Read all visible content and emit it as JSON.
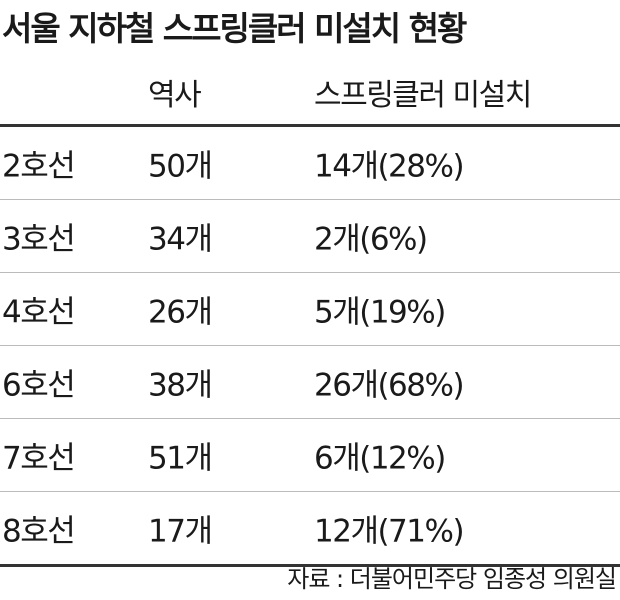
{
  "title": "서울 지하철 스프링클러 미설치 현황",
  "table": {
    "header": [
      "",
      "역사",
      "스프링클러 미설치"
    ],
    "rows": [
      [
        "2호선",
        "50개",
        "14개(28%)"
      ],
      [
        "3호선",
        "34개",
        "2개(6%)"
      ],
      [
        "4호선",
        "26개",
        "5개(19%)"
      ],
      [
        "6호선",
        "38개",
        "26개(68%)"
      ],
      [
        "7호선",
        "51개",
        "6개(12%)"
      ],
      [
        "8호선",
        "17개",
        "12개(71%)"
      ]
    ]
  },
  "source": "자료 : 더불어민주당 임종성 의원실"
}
